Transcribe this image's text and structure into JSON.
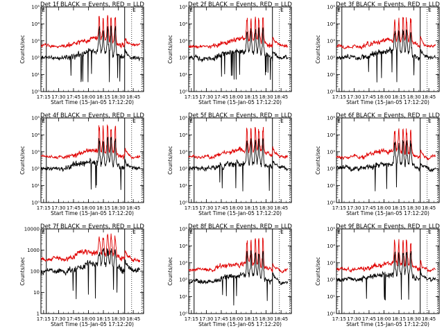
{
  "colors": {
    "events": "#000000",
    "lld": "#e00000",
    "background": "#ffffff"
  },
  "shared": {
    "xlabel": "Start Time (15-Jan-05 17:12:20)",
    "ylabel": "Counts/sec",
    "x_tick_labels": [
      "17:15",
      "17:30",
      "17:45",
      "18:00",
      "18:15",
      "18:30",
      "18:45"
    ],
    "x_tick_minutes": [
      2.667,
      17.667,
      32.667,
      47.667,
      62.667,
      77.667,
      92.667
    ],
    "x_range_minutes": [
      0,
      103
    ],
    "solid_marker_minutes": [
      5.4,
      84.0
    ],
    "dotted_marker_minutes": [
      91.0,
      101.2
    ],
    "corner_mark": "E"
  },
  "chart_data": [
    {
      "type": "line",
      "title": "Det 1f BLACK = Events, RED = LLD",
      "ylim_log10": [
        0,
        5
      ],
      "y_tick_labels": [
        "10⁰",
        "10¹",
        "10²",
        "10³",
        "10⁴",
        "10⁵"
      ],
      "y_tick_log10": [
        0,
        1,
        2,
        3,
        4,
        5
      ],
      "series": [
        {
          "name": "Events",
          "base_log10": 2.0,
          "seed": 11
        },
        {
          "name": "LLD",
          "base_log10": 2.7,
          "seed": 12
        }
      ],
      "spikes_minutes": [
        58.5,
        62.5,
        67.0,
        70.5,
        74.5
      ],
      "spike_peak_log10": 4.6
    },
    {
      "type": "line",
      "title": "Det 2f BLACK = Events, RED = LLD",
      "ylim_log10": [
        0,
        5
      ],
      "y_tick_labels": [
        "10⁰",
        "10¹",
        "10²",
        "10³",
        "10⁴",
        "10⁵"
      ],
      "y_tick_log10": [
        0,
        1,
        2,
        3,
        4,
        5
      ],
      "series": [
        {
          "name": "Events",
          "base_log10": 2.0,
          "seed": 21
        },
        {
          "name": "LLD",
          "base_log10": 2.7,
          "seed": 22
        }
      ],
      "spikes_minutes": [
        58.5,
        62.5,
        67.0,
        70.5,
        74.5
      ],
      "spike_peak_log10": 4.5
    },
    {
      "type": "line",
      "title": "Det 3f BLACK = Events, RED = LLD",
      "ylim_log10": [
        0,
        5
      ],
      "y_tick_labels": [
        "10⁰",
        "10¹",
        "10²",
        "10³",
        "10⁴",
        "10⁵"
      ],
      "y_tick_log10": [
        0,
        1,
        2,
        3,
        4,
        5
      ],
      "series": [
        {
          "name": "Events",
          "base_log10": 2.0,
          "seed": 31
        },
        {
          "name": "LLD",
          "base_log10": 2.7,
          "seed": 32
        }
      ],
      "spikes_minutes": [
        58.5,
        62.5,
        67.0,
        70.5,
        74.5
      ],
      "spike_peak_log10": 4.4
    },
    {
      "type": "line",
      "title": "Det 4f BLACK = Events, RED = LLD",
      "ylim_log10": [
        0,
        5
      ],
      "y_tick_labels": [
        "10⁰",
        "10¹",
        "10²",
        "10³",
        "10⁴",
        "10⁵"
      ],
      "y_tick_log10": [
        0,
        1,
        2,
        3,
        4,
        5
      ],
      "series": [
        {
          "name": "Events",
          "base_log10": 2.0,
          "seed": 41
        },
        {
          "name": "LLD",
          "base_log10": 2.7,
          "seed": 42
        }
      ],
      "spikes_minutes": [
        58.5,
        62.5,
        67.0,
        70.5,
        74.5
      ],
      "spike_peak_log10": 4.6
    },
    {
      "type": "line",
      "title": "Det 5f BLACK = Events, RED = LLD",
      "ylim_log10": [
        0,
        5
      ],
      "y_tick_labels": [
        "10⁰",
        "10¹",
        "10²",
        "10³",
        "10⁴",
        "10⁵"
      ],
      "y_tick_log10": [
        0,
        1,
        2,
        3,
        4,
        5
      ],
      "series": [
        {
          "name": "Events",
          "base_log10": 2.0,
          "seed": 51
        },
        {
          "name": "LLD",
          "base_log10": 2.7,
          "seed": 52
        }
      ],
      "spikes_minutes": [
        58.5,
        62.5,
        67.0,
        70.5,
        74.5
      ],
      "spike_peak_log10": 4.5
    },
    {
      "type": "line",
      "title": "Det 6f BLACK = Events, RED = LLD",
      "ylim_log10": [
        0,
        5
      ],
      "y_tick_labels": [
        "10⁰",
        "10¹",
        "10²",
        "10³",
        "10⁴",
        "10⁵"
      ],
      "y_tick_log10": [
        0,
        1,
        2,
        3,
        4,
        5
      ],
      "series": [
        {
          "name": "Events",
          "base_log10": 2.0,
          "seed": 61
        },
        {
          "name": "LLD",
          "base_log10": 2.7,
          "seed": 62
        }
      ],
      "spikes_minutes": [
        58.5,
        62.5,
        67.0,
        70.5,
        74.5
      ],
      "spike_peak_log10": 4.4
    },
    {
      "type": "line",
      "title": "Det 7f BLACK = Events, RED = LLD",
      "ylim_log10": [
        0,
        4
      ],
      "y_tick_labels": [
        "1",
        "10",
        "100",
        "1000",
        "10000"
      ],
      "y_tick_log10": [
        0,
        1,
        2,
        3,
        4
      ],
      "series": [
        {
          "name": "Events",
          "base_log10": 2.0,
          "seed": 71
        },
        {
          "name": "LLD",
          "base_log10": 2.55,
          "seed": 72
        }
      ],
      "spikes_minutes": [
        58.5,
        62.5,
        67.0,
        70.5,
        74.5
      ],
      "spike_peak_log10": 3.8
    },
    {
      "type": "line",
      "title": "Det 8f BLACK = Events, RED = LLD",
      "ylim_log10": [
        0,
        5
      ],
      "y_tick_labels": [
        "10⁰",
        "10¹",
        "10²",
        "10³",
        "10⁴",
        "10⁵"
      ],
      "y_tick_log10": [
        0,
        1,
        2,
        3,
        4,
        5
      ],
      "series": [
        {
          "name": "Events",
          "base_log10": 1.9,
          "seed": 81
        },
        {
          "name": "LLD",
          "base_log10": 2.6,
          "seed": 82
        }
      ],
      "spikes_minutes": [
        58.5,
        62.5,
        67.0,
        70.5,
        74.5
      ],
      "spike_peak_log10": 4.5
    },
    {
      "type": "line",
      "title": "Det 9f BLACK = Events, RED = LLD",
      "ylim_log10": [
        0,
        5
      ],
      "y_tick_labels": [
        "10⁰",
        "10¹",
        "10²",
        "10³",
        "10⁴",
        "10⁵"
      ],
      "y_tick_log10": [
        0,
        1,
        2,
        3,
        4,
        5
      ],
      "series": [
        {
          "name": "Events",
          "base_log10": 2.0,
          "seed": 91
        },
        {
          "name": "LLD",
          "base_log10": 2.6,
          "seed": 92
        }
      ],
      "spikes_minutes": [
        58.5,
        62.5,
        67.0,
        70.5,
        74.5
      ],
      "spike_peak_log10": 4.4
    }
  ]
}
